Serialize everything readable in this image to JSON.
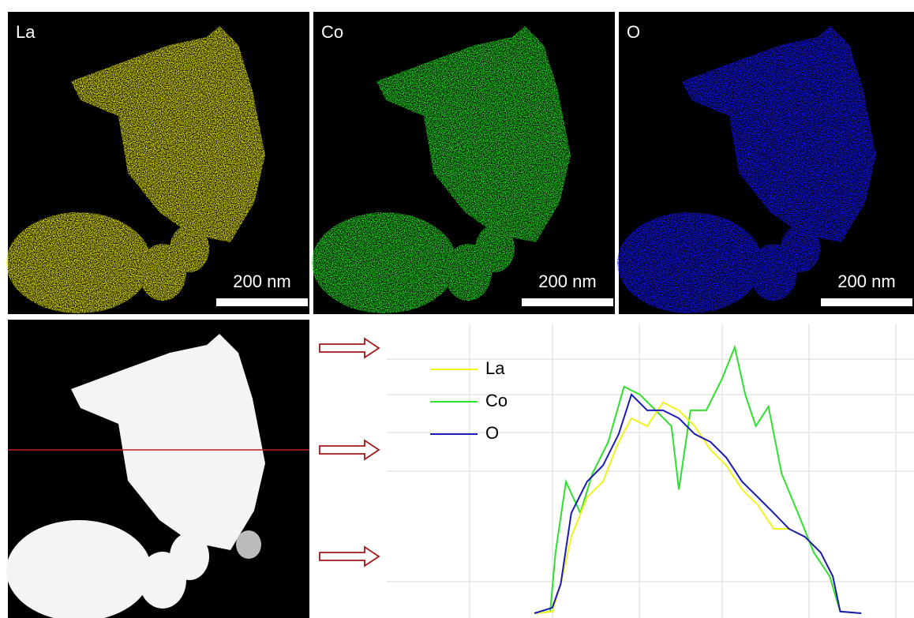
{
  "panels": [
    {
      "label": "La",
      "scale_bar": "200 nm",
      "color": "#e8e800"
    },
    {
      "label": "Co",
      "scale_bar": "200 nm",
      "color": "#22dd22"
    },
    {
      "label": "O",
      "scale_bar": "200 nm",
      "color": "#1414f0"
    }
  ],
  "chart_data": {
    "type": "line",
    "xlim": [
      0,
      100
    ],
    "ylim": [
      0,
      100
    ],
    "series": [
      {
        "name": "La",
        "color": "#f2f21a",
        "x": [
          28,
          31.4,
          33,
          35,
          38,
          41,
          44,
          46.4,
          49.4,
          52.4,
          55.4,
          58.4,
          61.4,
          64.4,
          67.4,
          70.4,
          73.4,
          76.3,
          79.3,
          82.3,
          84.6,
          86,
          90
        ],
        "values": [
          0.8,
          1.4,
          10.8,
          27,
          40.5,
          45.9,
          59.5,
          67.6,
          64.9,
          73,
          70.3,
          64.9,
          56.8,
          51.4,
          43.2,
          37.8,
          29.7,
          29.7,
          27,
          21.6,
          13.5,
          1.4,
          0.8
        ]
      },
      {
        "name": "Co",
        "color": "#2ee02e",
        "x": [
          28,
          31,
          32,
          34,
          36.7,
          39,
          42,
          45,
          48,
          51,
          54,
          55.4,
          57.6,
          60.6,
          63.6,
          66,
          68,
          70,
          72.4,
          74.9,
          78,
          81,
          84,
          86,
          90
        ],
        "values": [
          0.8,
          1.4,
          21.6,
          45.9,
          35.1,
          48.6,
          59.5,
          78.4,
          75.7,
          70.3,
          64.9,
          43.2,
          70.3,
          70.3,
          81.1,
          91.9,
          75.7,
          64.9,
          71.6,
          48.6,
          35.1,
          21.6,
          13.5,
          1.4,
          0.8
        ]
      },
      {
        "name": "O",
        "color": "#1a1ab4",
        "x": [
          28,
          31.4,
          33,
          35,
          38,
          41,
          44,
          46.4,
          49.4,
          52.4,
          55.4,
          58.4,
          61.4,
          64.4,
          67.4,
          70.4,
          73.4,
          76.3,
          79.3,
          82.3,
          84.6,
          86,
          90
        ],
        "values": [
          0.8,
          2.7,
          10.8,
          35.1,
          45.9,
          51.4,
          62.2,
          75.7,
          70.3,
          70.3,
          67.6,
          62.2,
          59.5,
          54.1,
          45.9,
          40.5,
          35.1,
          29.7,
          27,
          21.6,
          13.5,
          1.4,
          0.8
        ]
      }
    ]
  }
}
